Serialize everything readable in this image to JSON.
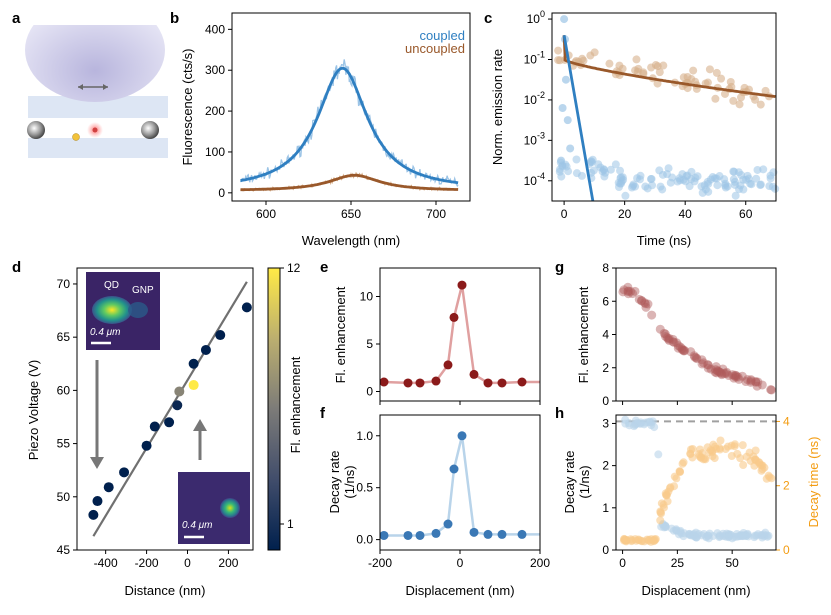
{
  "colors": {
    "coupled": "#2f7fc1",
    "coupled_light": "#9cc4e6",
    "uncoupled": "#99582a",
    "uncoupled_light": "#d7b08c",
    "red": "#8b1a1a",
    "red_light": "#e0a0a0",
    "blue": "#3a78b5",
    "blue_light": "#b9d4ea",
    "orange": "#f39c12",
    "orange_light": "#f8c98a",
    "gray": "#707070",
    "dash": "#a0a0a0"
  },
  "panel_labels": [
    "a",
    "b",
    "c",
    "d",
    "e",
    "f",
    "g",
    "h"
  ],
  "chart_data": [
    {
      "id": "b",
      "type": "line",
      "title": "",
      "xlabel": "Wavelength (nm)",
      "ylabel": "Fluorescence (cts/s)",
      "xlim": [
        580,
        720
      ],
      "ylim": [
        -20,
        440
      ],
      "xticks": [
        600,
        650,
        700
      ],
      "yticks": [
        0,
        100,
        200,
        300,
        400
      ],
      "legend": [
        "coupled",
        "uncoupled"
      ],
      "series": [
        {
          "name": "coupled",
          "model": "lorentzian",
          "center": 645,
          "width": 18,
          "amplitude": 300,
          "offset": 5,
          "noise": 22,
          "fit": true
        },
        {
          "name": "uncoupled",
          "model": "lorentzian",
          "center": 652,
          "width": 18,
          "amplitude": 38,
          "offset": 5,
          "noise": 5,
          "fit": true
        }
      ]
    },
    {
      "id": "c",
      "type": "scatter",
      "xlabel": "Time (ns)",
      "ylabel": "Norm. emission rate",
      "xlim": [
        -4,
        70
      ],
      "ylim_log10": [
        -4.5,
        0.15
      ],
      "xticks": [
        0,
        20,
        40,
        60
      ],
      "ytick_labels": [
        "10^-4",
        "10^-3",
        "10^-2",
        "10^-1",
        "10^0"
      ],
      "series": [
        {
          "name": "coupled",
          "peak_time": 0,
          "decay_time_ns": 0.3,
          "fit_end_ns": 9.5,
          "floor": 0.0001
        },
        {
          "name": "uncoupled",
          "peak_time": 0,
          "tail_start": 0.1,
          "tail_end": 0.012
        }
      ]
    },
    {
      "id": "d",
      "type": "scatter",
      "xlabel": "Distance (nm)",
      "ylabel": "Piezo Voltage (V)",
      "colorbar_label": "Fl. enhancement",
      "colorbar_ticks": [
        "12",
        "1"
      ],
      "xlim": [
        -540,
        320
      ],
      "ylim": [
        45,
        71.5
      ],
      "xticks": [
        -400,
        -200,
        0,
        200
      ],
      "yticks": [
        45,
        50,
        55,
        60,
        65,
        70
      ],
      "fit_line": {
        "x": [
          -460,
          290
        ],
        "y": [
          46.3,
          70.2
        ]
      },
      "points": [
        {
          "x": -460,
          "y": 48.3,
          "c": 1
        },
        {
          "x": -440,
          "y": 49.6,
          "c": 1
        },
        {
          "x": -385,
          "y": 50.9,
          "c": 1
        },
        {
          "x": -310,
          "y": 52.3,
          "c": 1
        },
        {
          "x": -200,
          "y": 54.8,
          "c": 1
        },
        {
          "x": -160,
          "y": 56.6,
          "c": 1
        },
        {
          "x": -90,
          "y": 57.0,
          "c": 1
        },
        {
          "x": -50,
          "y": 58.6,
          "c": 1.5
        },
        {
          "x": -40,
          "y": 59.9,
          "c": 7
        },
        {
          "x": 30,
          "y": 60.5,
          "c": 12
        },
        {
          "x": 30,
          "y": 62.5,
          "c": 1
        },
        {
          "x": 90,
          "y": 63.8,
          "c": 1
        },
        {
          "x": 160,
          "y": 65.2,
          "c": 1
        },
        {
          "x": 290,
          "y": 67.8,
          "c": 1
        }
      ],
      "inset_top": {
        "labels": [
          "QD",
          "GNP"
        ],
        "scale": "0.4 μm"
      },
      "inset_bottom": {
        "scale": "0.4 μm"
      }
    },
    {
      "id": "e",
      "type": "line",
      "xlabel": "",
      "ylabel": "Fl. enhancement",
      "xlim": [
        -200,
        200
      ],
      "ylim": [
        -1,
        13
      ],
      "yticks": [
        0,
        5,
        10
      ],
      "x": [
        -190,
        -130,
        -100,
        -60,
        -30,
        -15,
        5,
        35,
        70,
        105,
        155
      ],
      "values": [
        1.0,
        0.9,
        0.9,
        1.1,
        2.8,
        7.8,
        11.2,
        1.8,
        0.9,
        0.9,
        1.0
      ]
    },
    {
      "id": "f",
      "type": "line",
      "xlabel": "Displacement (nm)",
      "ylabel": "Decay rate (1/ns)",
      "xlim": [
        -200,
        200
      ],
      "ylim": [
        -0.1,
        1.2
      ],
      "xticks": [
        -200,
        0,
        200
      ],
      "yticks": [
        0.0,
        0.5,
        1.0
      ],
      "x": [
        -190,
        -130,
        -100,
        -60,
        -30,
        -15,
        5,
        35,
        70,
        105,
        155
      ],
      "values": [
        0.04,
        0.04,
        0.04,
        0.06,
        0.15,
        0.68,
        1.0,
        0.07,
        0.05,
        0.05,
        0.05
      ]
    },
    {
      "id": "g",
      "type": "scatter",
      "ylabel": "Fl. enhancement",
      "xlim": [
        -3,
        70
      ],
      "ylim": [
        0,
        8
      ],
      "yticks": [
        0,
        2,
        4,
        6,
        8
      ],
      "series": [
        {
          "name": "enhancement",
          "segments": [
            [
              0,
              6.7
            ],
            [
              6,
              6.5
            ],
            [
              12,
              5.5
            ],
            [
              18,
              4.0
            ],
            [
              26,
              3.3
            ],
            [
              34,
              2.5
            ],
            [
              45,
              1.7
            ],
            [
              55,
              1.3
            ],
            [
              67,
              0.8
            ]
          ]
        }
      ]
    },
    {
      "id": "h",
      "type": "scatter",
      "xlabel": "Displacement (nm)",
      "ylabel": "Decay rate (1/ns)",
      "ylabel_right": "Decay time (ns)",
      "xlim": [
        -3,
        70
      ],
      "ylim": [
        0,
        3.2
      ],
      "ylim_right": [
        0,
        4.2
      ],
      "xticks": [
        0,
        25,
        50
      ],
      "yticks": [
        0,
        1,
        2,
        3
      ],
      "yticks_right": [
        0,
        2,
        4
      ],
      "dashed_level": 3.05,
      "series": [
        {
          "name": "decay rate",
          "axis": "left",
          "segments": [
            [
              0,
              3.0
            ],
            [
              16,
              3.0
            ],
            [
              17,
              0.6
            ],
            [
              30,
              0.35
            ],
            [
              70,
              0.35
            ]
          ]
        },
        {
          "name": "decay time",
          "axis": "right",
          "segments": [
            [
              0,
              0.3
            ],
            [
              16,
              0.3
            ],
            [
              18,
              1.5
            ],
            [
              30,
              2.8
            ],
            [
              45,
              3.2
            ],
            [
              60,
              2.8
            ],
            [
              68,
              2.3
            ]
          ]
        }
      ]
    }
  ]
}
